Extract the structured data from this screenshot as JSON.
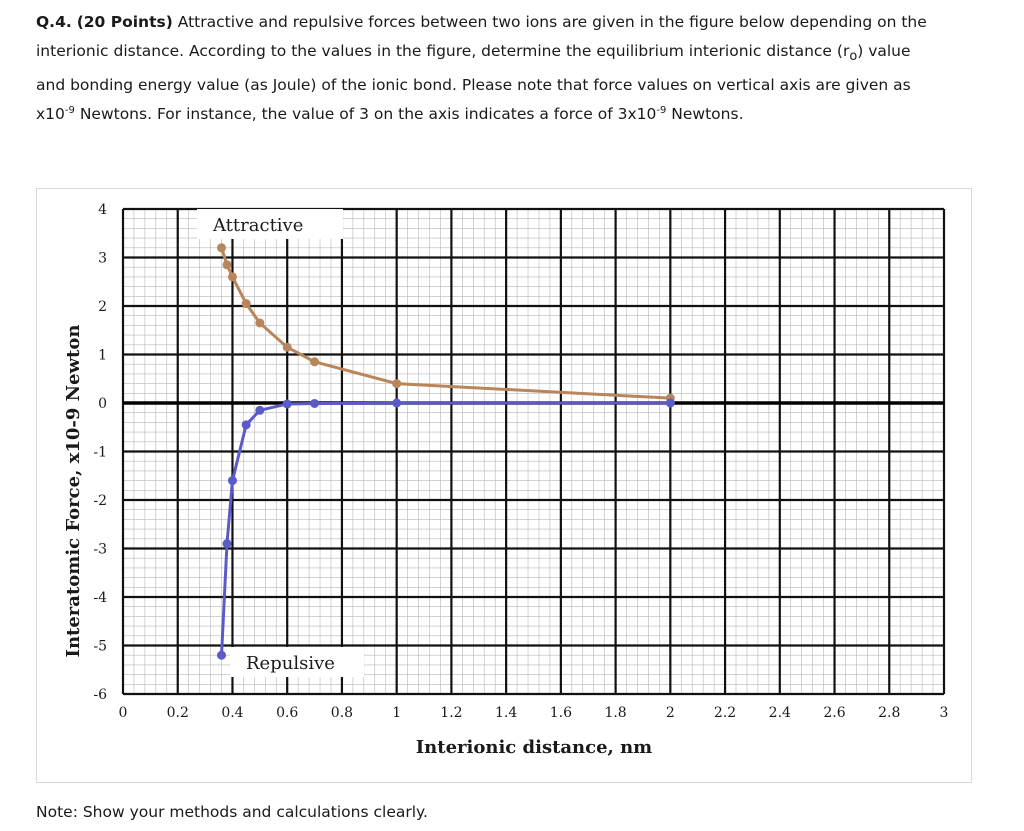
{
  "question": {
    "number": "Q.4.",
    "points": "(20 Points)",
    "line1_rest": "Attractive and repulsive forces between two ions are given in the figure below depending on the",
    "line2": "interionic distance.   According to the values in the figure, determine the equilibrium interionic distance (r",
    "line2_sub": "o",
    "line2_end": ") value",
    "line3": "and bonding energy value (as Joule) of the ionic bond. Please note that force values on vertical axis are given as",
    "line4_a": "x10",
    "line4_exp1": "-9",
    "line4_b": " Newtons. For instance, the value of 3 on the axis indicates a force of 3x10",
    "line4_exp2": "-9",
    "line4_c": " Newtons."
  },
  "note": "Note: Show your methods and calculations clearly.",
  "chart_data": {
    "type": "line",
    "xlabel": "Interionic distance, nm",
    "ylabel": "Interatomic Force, x10-9 Newton",
    "xlim": [
      0,
      3
    ],
    "ylim": [
      -6,
      4
    ],
    "x_ticks": [
      "0",
      "0.2",
      "0.4",
      "0.6",
      "0.8",
      "1",
      "1.2",
      "1.4",
      "1.6",
      "1.8",
      "2",
      "2.2",
      "2.4",
      "2.6",
      "2.8",
      "3"
    ],
    "y_ticks": [
      "4",
      "3",
      "2",
      "1",
      "0",
      "-1",
      "-2",
      "-3",
      "-4",
      "-5",
      "-6"
    ],
    "grid": true,
    "series": [
      {
        "name": "Attractive",
        "color": "#b9855a",
        "x": [
          0.36,
          0.38,
          0.4,
          0.45,
          0.5,
          0.6,
          0.7,
          1.0,
          2.0
        ],
        "y": [
          3.2,
          2.85,
          2.6,
          2.05,
          1.65,
          1.15,
          0.85,
          0.4,
          0.1
        ]
      },
      {
        "name": "Repulsive",
        "color": "#5b5bc8",
        "x": [
          0.36,
          0.38,
          0.4,
          0.45,
          0.5,
          0.6,
          0.7,
          1.0,
          2.0
        ],
        "y": [
          -5.2,
          -2.9,
          -1.6,
          -0.45,
          -0.15,
          -0.02,
          -0.01,
          0.0,
          0.0
        ]
      }
    ]
  }
}
